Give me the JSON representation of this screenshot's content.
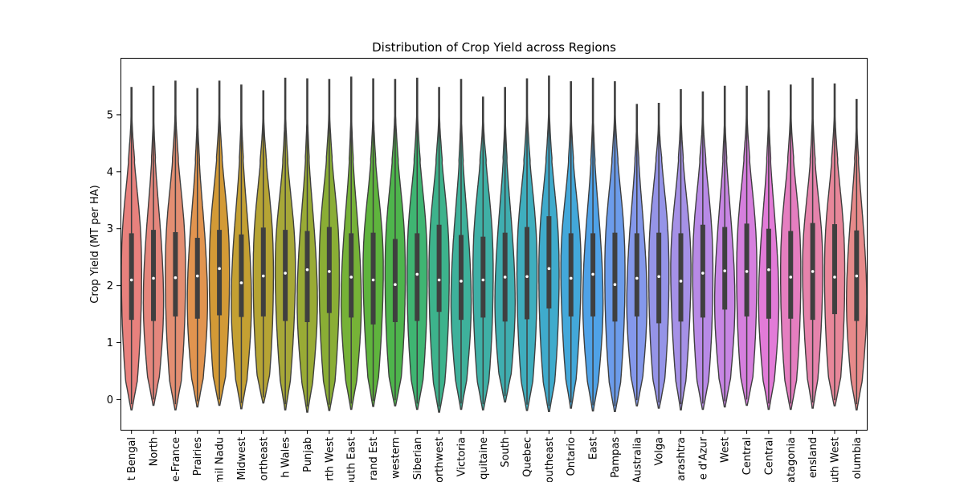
{
  "chart_data": {
    "type": "violin",
    "title": "Distribution of Crop Yield across Regions",
    "xlabel": "",
    "ylabel": "Crop Yield (MT per HA)",
    "ylim": [
      -0.53,
      6.0
    ],
    "yticks": [
      0,
      1,
      2,
      3,
      4,
      5
    ],
    "grid": false,
    "legend": "none",
    "categories": [
      "t Bengal",
      "North",
      "e-France",
      "Prairies",
      "mil Nadu",
      "Midwest",
      "ortheast",
      "h Wales",
      "Punjab",
      "rth West",
      "outh East",
      "rand Est",
      "western",
      "Siberian",
      "orthwest",
      "Victoria",
      "quitaine",
      "South",
      "Quebec",
      "outheast",
      "Ontario",
      "East",
      "Pampas",
      "Australia",
      "Volga",
      "arashtra",
      "e d'Azur",
      "West",
      "Central",
      "Central",
      "atagonia",
      "ensland",
      "uth West",
      "olumbia"
    ],
    "medians": [
      2.1,
      2.13,
      2.14,
      2.17,
      2.3,
      2.05,
      2.17,
      2.22,
      2.28,
      2.25,
      2.15,
      2.1,
      2.02,
      2.2,
      2.1,
      2.08,
      2.1,
      2.15,
      2.16,
      2.3,
      2.13,
      2.2,
      2.02,
      2.13,
      2.16,
      2.08,
      2.22,
      2.26,
      2.25,
      2.28,
      2.15,
      2.25,
      2.15,
      2.17
    ],
    "q1": [
      1.4,
      1.38,
      1.46,
      1.42,
      1.48,
      1.45,
      1.46,
      1.38,
      1.36,
      1.52,
      1.44,
      1.32,
      1.36,
      1.38,
      1.54,
      1.4,
      1.44,
      1.37,
      1.41,
      1.6,
      1.46,
      1.46,
      1.37,
      1.46,
      1.34,
      1.37,
      1.44,
      1.58,
      1.46,
      1.42,
      1.42,
      1.4,
      1.5,
      1.38
    ],
    "q3": [
      2.92,
      2.98,
      2.94,
      2.84,
      2.98,
      2.9,
      3.02,
      2.98,
      2.96,
      3.03,
      2.92,
      2.93,
      2.82,
      2.92,
      3.07,
      2.89,
      2.86,
      2.93,
      3.03,
      3.22,
      2.92,
      2.92,
      2.93,
      2.92,
      2.93,
      2.92,
      3.07,
      3.03,
      3.09,
      3.0,
      2.96,
      3.1,
      3.08,
      2.97
    ],
    "mins": [
      -0.18,
      -0.1,
      -0.18,
      -0.13,
      -0.1,
      -0.16,
      -0.06,
      -0.18,
      -0.22,
      -0.19,
      -0.17,
      -0.12,
      -0.11,
      -0.17,
      -0.22,
      -0.17,
      -0.18,
      -0.04,
      -0.19,
      -0.21,
      -0.15,
      -0.2,
      -0.21,
      -0.11,
      -0.15,
      -0.18,
      -0.17,
      -0.13,
      -0.1,
      -0.17,
      -0.17,
      -0.15,
      -0.11,
      -0.18
    ],
    "maxs": [
      5.48,
      5.5,
      5.59,
      5.46,
      5.59,
      5.52,
      5.42,
      5.64,
      5.63,
      5.62,
      5.66,
      5.63,
      5.62,
      5.64,
      5.48,
      5.62,
      5.31,
      5.48,
      5.63,
      5.68,
      5.58,
      5.64,
      5.58,
      5.18,
      5.2,
      5.44,
      5.4,
      5.5,
      5.5,
      5.42,
      5.52,
      5.64,
      5.54,
      5.27
    ],
    "colors": [
      "#e8817d",
      "#e5877d",
      "#e38e72",
      "#e1944f",
      "#d39a36",
      "#c4a032",
      "#b6a434",
      "#a7a838",
      "#99ab35",
      "#8aae35",
      "#76b237",
      "#5fb43d",
      "#4eb54c",
      "#3fb572",
      "#3db38c",
      "#3eb19b",
      "#3fb0a6",
      "#3faeb0",
      "#3faebe",
      "#3fabcc",
      "#43a8da",
      "#4fa2e7",
      "#6c9ceb",
      "#8498eb",
      "#9594e8",
      "#a591e7",
      "#b88ae6",
      "#c886e4",
      "#d67fde",
      "#e27bd8",
      "#e57ec0",
      "#e683ac",
      "#e8879a",
      "#e78a8a"
    ],
    "shapes": [
      "ab",
      "aa",
      "ab",
      "aa",
      "ab",
      "aa",
      "ab",
      "bc",
      "aa",
      "ab",
      "aa",
      "bc",
      "ab",
      "ab",
      "ab",
      "aa",
      "ab",
      "aa",
      "ab",
      "ab",
      "bc",
      "aa",
      "ab",
      "aa",
      "ab",
      "bc",
      "ab",
      "aa",
      "ab",
      "aa",
      "ab",
      "bc",
      "ab",
      "aa"
    ]
  }
}
